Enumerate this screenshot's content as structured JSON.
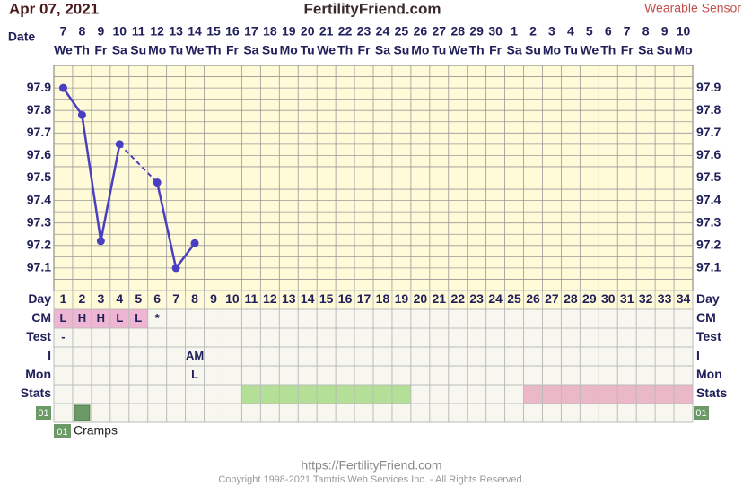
{
  "header": {
    "date": "Apr 07, 2021",
    "site": "FertilityFriend.com",
    "mode": "Wearable Sensor"
  },
  "chart_data": {
    "type": "line",
    "date_label": "Date",
    "dates": [
      7,
      8,
      9,
      10,
      11,
      12,
      13,
      14,
      15,
      16,
      17,
      18,
      19,
      20,
      21,
      22,
      23,
      24,
      25,
      26,
      27,
      28,
      29,
      30,
      1,
      2,
      3,
      4,
      5,
      6,
      7,
      8,
      9,
      10
    ],
    "weekdays": [
      "We",
      "Th",
      "Fr",
      "Sa",
      "Su",
      "Mo",
      "Tu",
      "We",
      "Th",
      "Fr",
      "Sa",
      "Su",
      "Mo",
      "Tu",
      "We",
      "Th",
      "Fr",
      "Sa",
      "Su",
      "Mo",
      "Tu",
      "We",
      "Th",
      "Fr",
      "Sa",
      "Su",
      "Mo",
      "Tu",
      "We",
      "Th",
      "Fr",
      "Sa",
      "Su",
      "Mo"
    ],
    "series": [
      {
        "color": "#4a3fc0",
        "values": [
          97.9,
          97.78,
          97.22,
          97.65,
          null,
          97.48,
          97.1,
          97.21,
          null,
          null,
          null,
          null,
          null,
          null,
          null,
          null,
          null,
          null,
          null,
          null,
          null,
          null,
          null,
          null,
          null,
          null,
          null,
          null,
          null,
          null,
          null,
          null,
          null,
          null
        ]
      }
    ],
    "ylim": [
      97.0,
      98.0
    ],
    "yticks": [
      97.1,
      97.2,
      97.3,
      97.4,
      97.5,
      97.6,
      97.7,
      97.8,
      97.9
    ],
    "grid": true
  },
  "table": {
    "day_label": "Day",
    "days": [
      1,
      2,
      3,
      4,
      5,
      6,
      7,
      8,
      9,
      10,
      11,
      12,
      13,
      14,
      15,
      16,
      17,
      18,
      19,
      20,
      21,
      22,
      23,
      24,
      25,
      26,
      27,
      28,
      29,
      30,
      31,
      32,
      33,
      34
    ],
    "rows": [
      {
        "label": "CM",
        "entries": [
          {
            "day": 1,
            "text": "L",
            "color": "#eeb6d2"
          },
          {
            "day": 2,
            "text": "H",
            "color": "#eeb6d2"
          },
          {
            "day": 3,
            "text": "H",
            "color": "#eeb6d2"
          },
          {
            "day": 4,
            "text": "L",
            "color": "#eeb6d2"
          },
          {
            "day": 5,
            "text": "L",
            "color": "#eeb6d2"
          },
          {
            "day": 6,
            "text": "*"
          }
        ]
      },
      {
        "label": "Test",
        "entries": [
          {
            "day": 1,
            "text": "-"
          }
        ]
      },
      {
        "label": "I",
        "entries": [
          {
            "day": 8,
            "text": "AM"
          }
        ]
      },
      {
        "label": "Mon",
        "entries": [
          {
            "day": 8,
            "text": "L"
          }
        ]
      },
      {
        "label": "Stats",
        "ranges": [
          {
            "from": 11,
            "to": 19,
            "color": "#b3e096"
          },
          {
            "from": 26,
            "to": 34,
            "color": "#ebb8c8"
          }
        ]
      },
      {
        "label": "01",
        "marks": [
          {
            "day": 2,
            "color": "#6c9a66"
          }
        ]
      }
    ]
  },
  "legend": {
    "code": "01",
    "text": "Cramps"
  },
  "footer": {
    "url": "https://FertilityFriend.com",
    "copyright": "Copyright 1998-2021 Tamtris Web Services Inc. - All Rights Reserved."
  }
}
